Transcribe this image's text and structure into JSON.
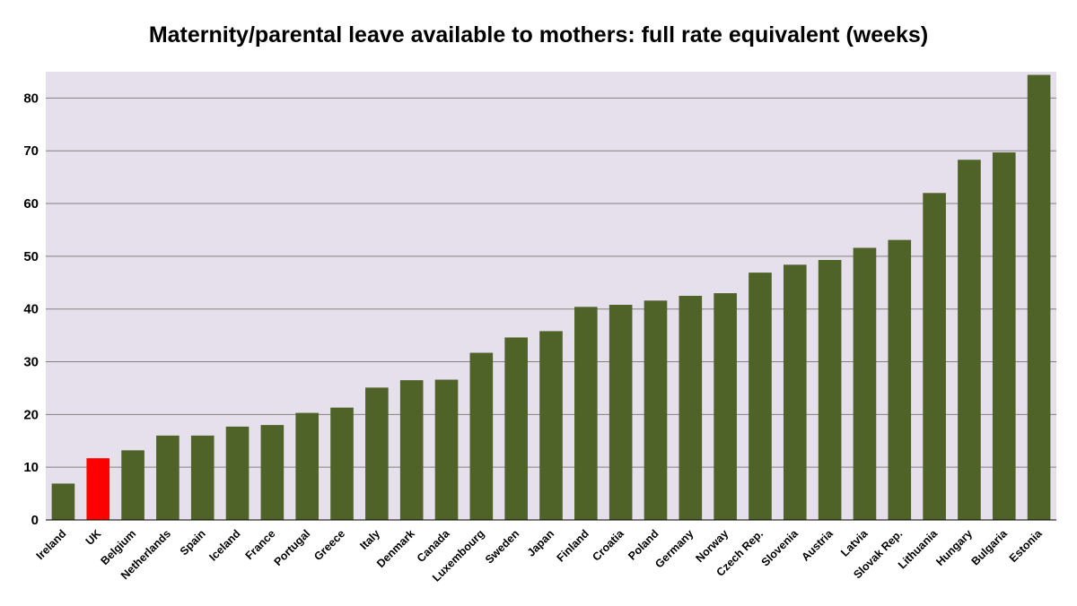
{
  "chart_data": {
    "type": "bar",
    "title": "Maternity/parental leave available to mothers: full rate equivalent (weeks)",
    "xlabel": "",
    "ylabel": "",
    "ylim": [
      0,
      85
    ],
    "yticks": [
      0,
      10,
      20,
      30,
      40,
      50,
      60,
      70,
      80
    ],
    "grid": true,
    "legend": "none",
    "categories": [
      "Ireland",
      "UK",
      "Belgium",
      "Netherlands",
      "Spain",
      "Iceland",
      "France",
      "Portugal",
      "Greece",
      "Italy",
      "Denmark",
      "Canada",
      "Luxembourg",
      "Sweden",
      "Japan",
      "Finland",
      "Croatia",
      "Poland",
      "Germany",
      "Norway",
      "Czech Rep.",
      "Slovenia",
      "Austria",
      "Latvia",
      "Slovak Rep.",
      "Lithuania",
      "Hungary",
      "Bulgaria",
      "Estonia"
    ],
    "values": [
      6.9,
      11.7,
      13.2,
      16.0,
      16.0,
      17.7,
      18.0,
      20.3,
      21.3,
      25.1,
      26.5,
      26.6,
      31.7,
      34.6,
      35.8,
      40.4,
      40.8,
      41.6,
      42.5,
      43.0,
      46.9,
      48.4,
      49.3,
      51.6,
      53.1,
      62.0,
      68.3,
      69.7,
      84.4
    ],
    "highlight_category": "UK",
    "colors": {
      "bar": "#4f6228",
      "highlight": "#ff0000",
      "plot_background": "#e6e0ec",
      "gridline": "#808080"
    }
  }
}
